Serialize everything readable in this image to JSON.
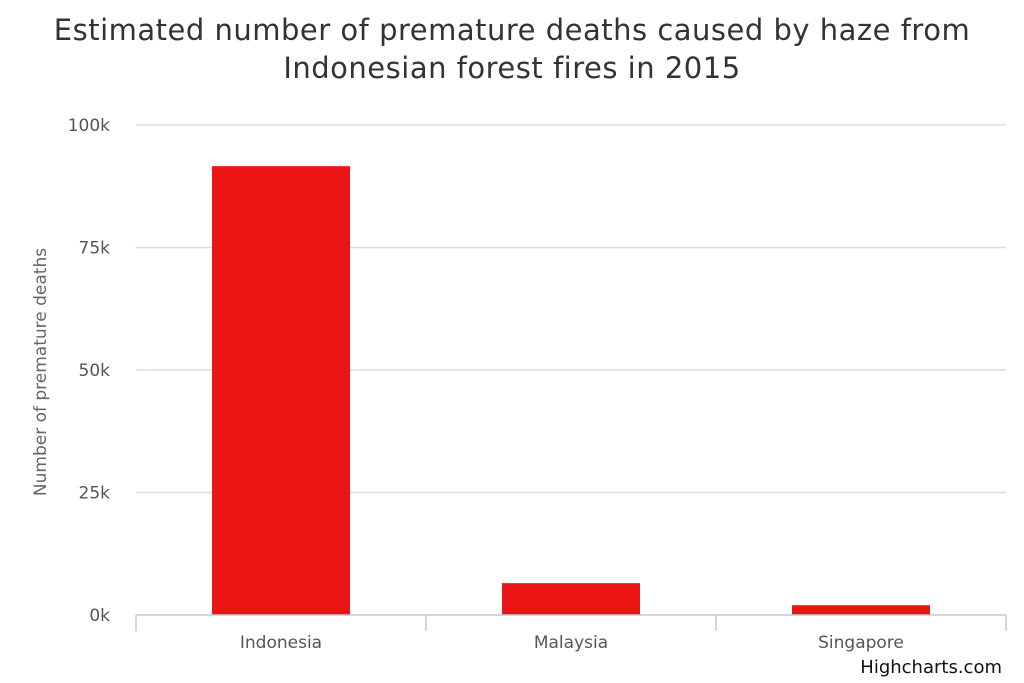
{
  "chart_data": {
    "type": "bar",
    "title_lines": [
      "Estimated number of premature deaths caused by haze from",
      "Indonesian forest fires in 2015"
    ],
    "categories": [
      "Indonesia",
      "Malaysia",
      "Singapore"
    ],
    "values": [
      91600,
      6500,
      2000
    ],
    "ylabel": "Number of premature deaths",
    "yticks": [
      {
        "value": 0,
        "label": "0k"
      },
      {
        "value": 25000,
        "label": "25k"
      },
      {
        "value": 50000,
        "label": "50k"
      },
      {
        "value": 75000,
        "label": "75k"
      },
      {
        "value": 100000,
        "label": "100k"
      }
    ],
    "ylim": [
      0,
      100000
    ],
    "grid": true,
    "bar_color": "#ec1516",
    "grid_color": "#d8dde6",
    "axis_color": "#c0cad8",
    "credit": "Highcharts.com"
  }
}
